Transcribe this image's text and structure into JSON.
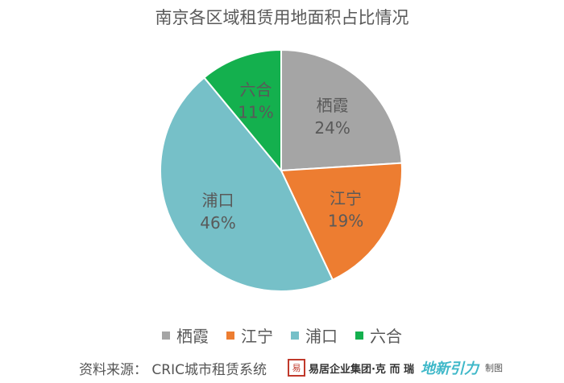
{
  "chart_data": {
    "type": "pie",
    "title": "南京各区域租赁用地面积占比情况",
    "slices": [
      {
        "name": "栖霞",
        "value": 24,
        "label": "24%",
        "color": "#a5a5a5"
      },
      {
        "name": "江宁",
        "value": 19,
        "label": "19%",
        "color": "#ed7d31"
      },
      {
        "name": "浦口",
        "value": 46,
        "label": "46%",
        "color": "#76c0c8"
      },
      {
        "name": "六合",
        "value": 11,
        "label": "11%",
        "color": "#14b04e"
      }
    ],
    "legend_position": "bottom"
  },
  "footer": {
    "source": "资料来源：  CRIC城市租赁系统",
    "logo_text": "易居企业集团·克 而 瑞",
    "brand": "地新引力",
    "made_by": "制图"
  }
}
